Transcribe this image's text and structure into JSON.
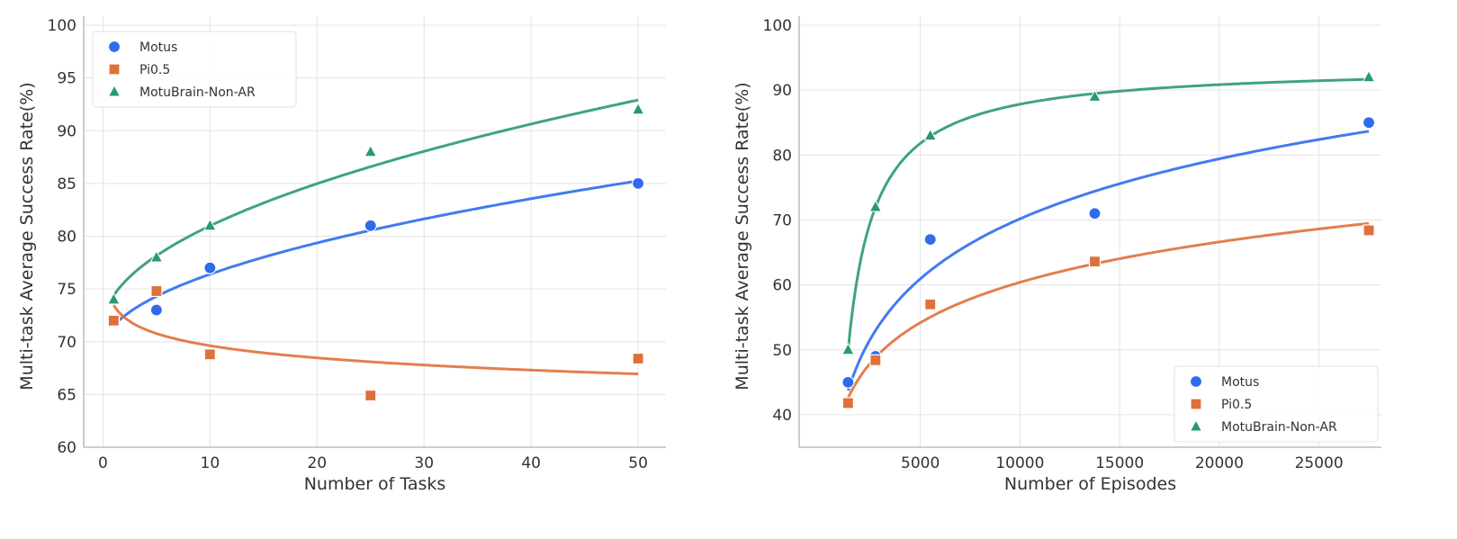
{
  "colors": {
    "Motus": "#2f6bed",
    "Pi0.5": "#e0703a",
    "MotuBrain-Non-AR": "#2a9a6c"
  },
  "chart_data": [
    {
      "type": "scatter",
      "xlabel": "Number of Tasks",
      "ylabel": "Multi-task Average Success Rate(%)",
      "xlim": [
        -1.8,
        52.6
      ],
      "ylim": [
        60,
        100
      ],
      "xticks": [
        0,
        10,
        20,
        30,
        40,
        50
      ],
      "yticks": [
        60,
        65,
        70,
        75,
        80,
        85,
        90,
        95,
        100
      ],
      "grid": true,
      "legend_position": "top-left",
      "series": [
        {
          "name": "Motus",
          "marker": "circle",
          "fit": "sqrt",
          "x": [
            1,
            5,
            10,
            25,
            50
          ],
          "y": [
            72,
            73,
            77,
            81,
            85
          ]
        },
        {
          "name": "Pi0.5",
          "marker": "square",
          "fit": "log",
          "x": [
            1,
            5,
            10,
            25,
            50
          ],
          "y": [
            72,
            74.8,
            68.8,
            64.9,
            68.4
          ]
        },
        {
          "name": "MotuBrain-Non-AR",
          "marker": "triangle",
          "fit": "sqrt",
          "x": [
            1,
            5,
            10,
            25,
            50
          ],
          "y": [
            74,
            78,
            81,
            88,
            92
          ]
        }
      ]
    },
    {
      "type": "scatter",
      "xlabel": "Number of Episodes",
      "ylabel": "Multi-task Average Success Rate(%)",
      "xlim": [
        -1080,
        28130
      ],
      "ylim": [
        35,
        100
      ],
      "xticks": [
        5000,
        10000,
        15000,
        20000,
        25000
      ],
      "yticks": [
        40,
        50,
        60,
        70,
        80,
        90,
        100
      ],
      "grid": true,
      "legend_position": "bottom-right",
      "series": [
        {
          "name": "Motus",
          "marker": "circle",
          "fit": "log",
          "x": [
            1375,
            2750,
            5500,
            13750,
            27500
          ],
          "y": [
            45,
            49,
            67,
            71,
            85
          ]
        },
        {
          "name": "Pi0.5",
          "marker": "square",
          "fit": "log",
          "x": [
            1375,
            2750,
            5500,
            13750,
            27500
          ],
          "y": [
            41.8,
            48.4,
            57,
            63.6,
            68.4
          ]
        },
        {
          "name": "MotuBrain-Non-AR",
          "marker": "triangle",
          "fit": "reciprocal",
          "x": [
            1375,
            2750,
            5500,
            13750,
            27500
          ],
          "y": [
            50,
            72,
            83,
            89,
            92
          ]
        }
      ]
    }
  ]
}
